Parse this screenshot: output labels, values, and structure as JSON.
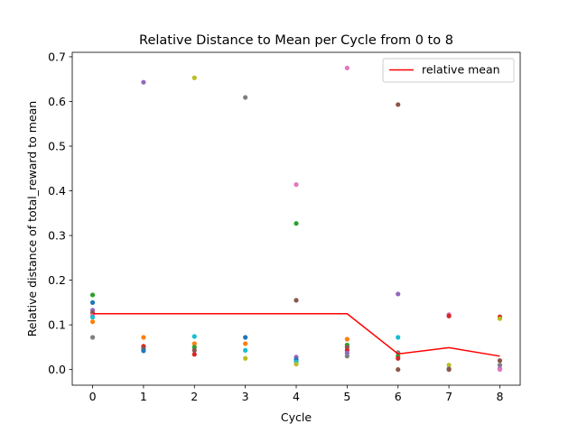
{
  "chart_data": {
    "type": "scatter",
    "title": "Relative Distance to Mean per Cycle from 0 to 8",
    "xlabel": "Cycle",
    "ylabel": "Relative distance of total_reward to mean",
    "xlim": [
      -0.4,
      8.4
    ],
    "ylim": [
      -0.035,
      0.71
    ],
    "xticks": [
      0,
      1,
      2,
      3,
      4,
      5,
      6,
      7,
      8
    ],
    "yticks": [
      0.0,
      0.1,
      0.2,
      0.3,
      0.4,
      0.5,
      0.6,
      0.7
    ],
    "ytick_labels": [
      "0.0",
      "0.1",
      "0.2",
      "0.3",
      "0.4",
      "0.5",
      "0.6",
      "0.7"
    ],
    "legend_position": "top-right",
    "colors": [
      "#1f77b4",
      "#ff7f0e",
      "#2ca02c",
      "#d62728",
      "#9467bd",
      "#8c564b",
      "#e377c2",
      "#7f7f7f",
      "#bcbd22",
      "#17becf"
    ],
    "points": [
      {
        "x": 0,
        "y": 0.167,
        "color": "#2ca02c"
      },
      {
        "x": 0,
        "y": 0.15,
        "color": "#1f77b4"
      },
      {
        "x": 0,
        "y": 0.133,
        "color": "#9467bd"
      },
      {
        "x": 0,
        "y": 0.127,
        "color": "#8c564b"
      },
      {
        "x": 0,
        "y": 0.121,
        "color": "#e377c2"
      },
      {
        "x": 0,
        "y": 0.117,
        "color": "#17becf"
      },
      {
        "x": 0,
        "y": 0.107,
        "color": "#ff7f0e"
      },
      {
        "x": 0,
        "y": 0.072,
        "color": "#7f7f7f"
      },
      {
        "x": 1,
        "y": 0.643,
        "color": "#9467bd"
      },
      {
        "x": 1,
        "y": 0.072,
        "color": "#ff7f0e"
      },
      {
        "x": 1,
        "y": 0.052,
        "color": "#d62728"
      },
      {
        "x": 1,
        "y": 0.047,
        "color": "#8c564b"
      },
      {
        "x": 1,
        "y": 0.042,
        "color": "#1f77b4"
      },
      {
        "x": 2,
        "y": 0.653,
        "color": "#bcbd22"
      },
      {
        "x": 2,
        "y": 0.074,
        "color": "#17becf"
      },
      {
        "x": 2,
        "y": 0.058,
        "color": "#ff7f0e"
      },
      {
        "x": 2,
        "y": 0.05,
        "color": "#2ca02c"
      },
      {
        "x": 2,
        "y": 0.043,
        "color": "#8c564b"
      },
      {
        "x": 2,
        "y": 0.034,
        "color": "#d62728"
      },
      {
        "x": 3,
        "y": 0.609,
        "color": "#7f7f7f"
      },
      {
        "x": 3,
        "y": 0.072,
        "color": "#1f77b4"
      },
      {
        "x": 3,
        "y": 0.058,
        "color": "#ff7f0e"
      },
      {
        "x": 3,
        "y": 0.043,
        "color": "#17becf"
      },
      {
        "x": 3,
        "y": 0.025,
        "color": "#bcbd22"
      },
      {
        "x": 4,
        "y": 0.414,
        "color": "#e377c2"
      },
      {
        "x": 4,
        "y": 0.327,
        "color": "#2ca02c"
      },
      {
        "x": 4,
        "y": 0.155,
        "color": "#8c564b"
      },
      {
        "x": 4,
        "y": 0.028,
        "color": "#9467bd"
      },
      {
        "x": 4,
        "y": 0.022,
        "color": "#1f77b4"
      },
      {
        "x": 4,
        "y": 0.017,
        "color": "#17becf"
      },
      {
        "x": 4,
        "y": 0.012,
        "color": "#bcbd22"
      },
      {
        "x": 5,
        "y": 0.675,
        "color": "#e377c2"
      },
      {
        "x": 5,
        "y": 0.068,
        "color": "#ff7f0e"
      },
      {
        "x": 5,
        "y": 0.055,
        "color": "#2ca02c"
      },
      {
        "x": 5,
        "y": 0.05,
        "color": "#8c564b"
      },
      {
        "x": 5,
        "y": 0.043,
        "color": "#d62728"
      },
      {
        "x": 5,
        "y": 0.037,
        "color": "#9467bd"
      },
      {
        "x": 5,
        "y": 0.03,
        "color": "#7f7f7f"
      },
      {
        "x": 6,
        "y": 0.593,
        "color": "#8c564b"
      },
      {
        "x": 6,
        "y": 0.169,
        "color": "#9467bd"
      },
      {
        "x": 6,
        "y": 0.072,
        "color": "#17becf"
      },
      {
        "x": 6,
        "y": 0.038,
        "color": "#7f7f7f"
      },
      {
        "x": 6,
        "y": 0.03,
        "color": "#2ca02c"
      },
      {
        "x": 6,
        "y": 0.025,
        "color": "#d62728"
      },
      {
        "x": 6,
        "y": 0.0,
        "color": "#8c564b"
      },
      {
        "x": 7,
        "y": 0.123,
        "color": "#e377c2"
      },
      {
        "x": 7,
        "y": 0.12,
        "color": "#d62728"
      },
      {
        "x": 7,
        "y": 0.01,
        "color": "#bcbd22"
      },
      {
        "x": 7,
        "y": 0.002,
        "color": "#7f7f7f"
      },
      {
        "x": 7,
        "y": 0.0,
        "color": "#8c564b"
      },
      {
        "x": 8,
        "y": 0.118,
        "color": "#d62728"
      },
      {
        "x": 8,
        "y": 0.114,
        "color": "#bcbd22"
      },
      {
        "x": 8,
        "y": 0.02,
        "color": "#8c564b"
      },
      {
        "x": 8,
        "y": 0.01,
        "color": "#7f7f7f"
      },
      {
        "x": 8,
        "y": 0.002,
        "color": "#9467bd"
      },
      {
        "x": 8,
        "y": 0.0,
        "color": "#e377c2"
      }
    ],
    "series": [
      {
        "name": "relative mean",
        "type": "line",
        "color": "#ff0000",
        "x": [
          0,
          1,
          2,
          3,
          4,
          5,
          6,
          7,
          8
        ],
        "values": [
          0.125,
          0.125,
          0.125,
          0.125,
          0.125,
          0.125,
          0.035,
          0.049,
          0.03
        ]
      }
    ]
  }
}
